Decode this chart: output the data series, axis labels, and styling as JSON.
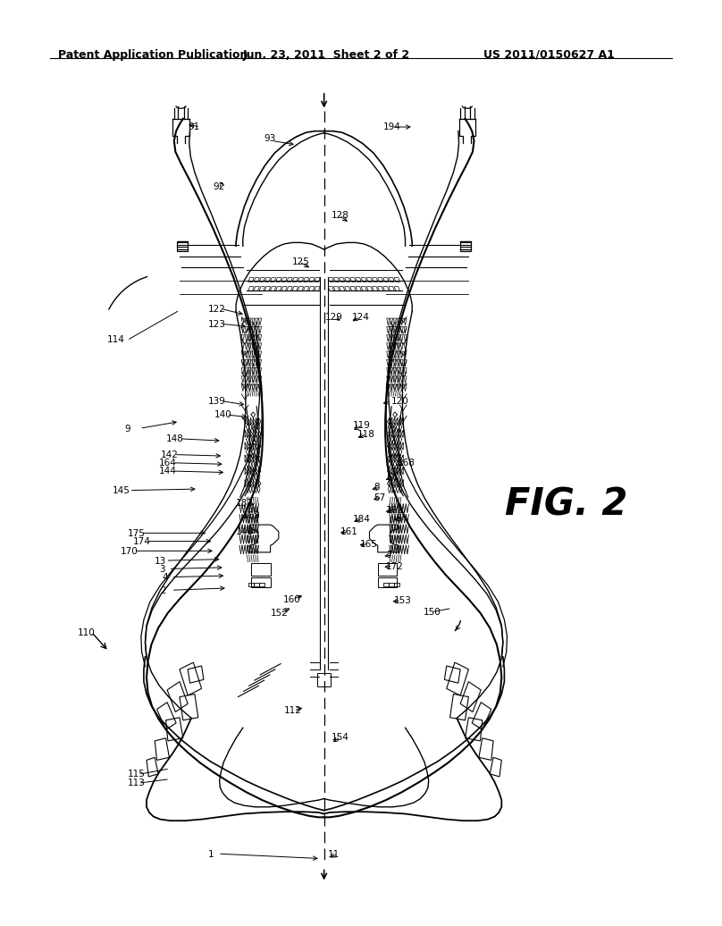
{
  "bg_color": "#ffffff",
  "line_color": "#000000",
  "header_left": "Patent Application Publication",
  "header_center": "Jun. 23, 2011  Sheet 2 of 2",
  "header_right": "US 2011/0150627 A1",
  "fig_label": "FIG. 2",
  "header_fontsize": 9
}
